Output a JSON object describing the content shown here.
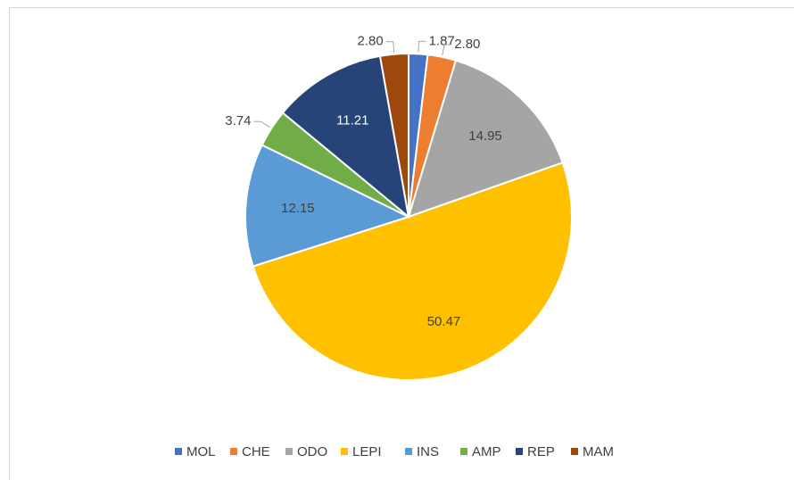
{
  "chart_data": {
    "type": "pie",
    "categories": [
      "MOL",
      "CHE",
      "ODO",
      "LEPI",
      "INS",
      "AMP",
      "REP",
      "MAM"
    ],
    "values": [
      1.87,
      2.8,
      14.95,
      50.47,
      12.15,
      3.74,
      11.21,
      2.8
    ],
    "value_labels": [
      "1.87",
      "2.80",
      "14.95",
      "50.47",
      "12.15",
      "3.74",
      "11.21",
      "2.80"
    ],
    "colors": [
      "#4472c4",
      "#ed7d31",
      "#a5a5a5",
      "#ffc000",
      "#5b9bd5",
      "#70ad47",
      "#264478",
      "#9e480e"
    ],
    "legend": "bottom"
  }
}
